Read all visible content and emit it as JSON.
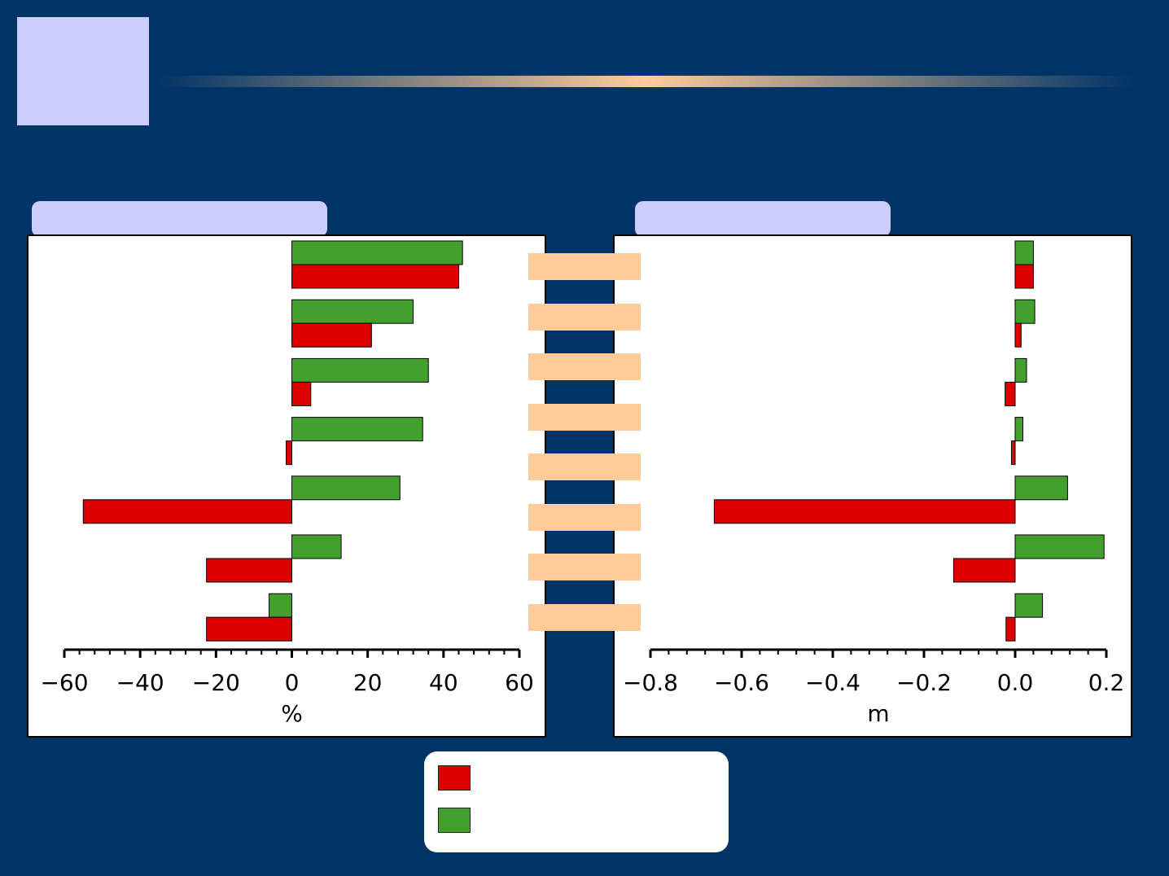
{
  "colors": {
    "background": "#003366",
    "accent_light": "#ccccff",
    "accent_peach": "#ffcc99",
    "series_red": "#dd0000",
    "series_green": "#44a02c"
  },
  "chart_data": [
    {
      "type": "bar",
      "orientation": "horizontal",
      "categories": [
        "",
        "",
        "",
        "",
        "",
        "",
        ""
      ],
      "series": [
        {
          "values": [
            44,
            21,
            5,
            -1.5,
            -55,
            -22.5,
            -22.5
          ]
        },
        {
          "values": [
            45,
            32,
            36,
            34.5,
            28.5,
            13,
            -6
          ]
        }
      ],
      "xlabel": "%",
      "xlim": [
        -60,
        60
      ],
      "ticks": [
        -60,
        -40,
        -20,
        0,
        20,
        40,
        60
      ],
      "tick_labels": [
        "−60",
        "−40",
        "−20",
        "0",
        "20",
        "40",
        "60"
      ],
      "grid": false
    },
    {
      "type": "bar",
      "orientation": "horizontal",
      "categories": [
        "",
        "",
        "",
        "",
        "",
        "",
        ""
      ],
      "series": [
        {
          "values": [
            0.04,
            0.013,
            -0.022,
            -0.008,
            -0.66,
            -0.135,
            -0.02
          ]
        },
        {
          "values": [
            0.04,
            0.043,
            0.025,
            0.017,
            0.115,
            0.195,
            0.06
          ]
        }
      ],
      "xlabel": "m",
      "xlim": [
        -0.8,
        0.2
      ],
      "ticks": [
        -0.8,
        -0.6,
        -0.4,
        -0.2,
        0.0,
        0.2
      ],
      "tick_labels": [
        "−0.8",
        "−0.6",
        "−0.4",
        "−0.2",
        "0.0",
        "0.2"
      ],
      "grid": false
    }
  ],
  "legend": {
    "items": [
      {
        "color": "#dd0000",
        "label": ""
      },
      {
        "color": "#44a02c",
        "label": ""
      }
    ]
  }
}
